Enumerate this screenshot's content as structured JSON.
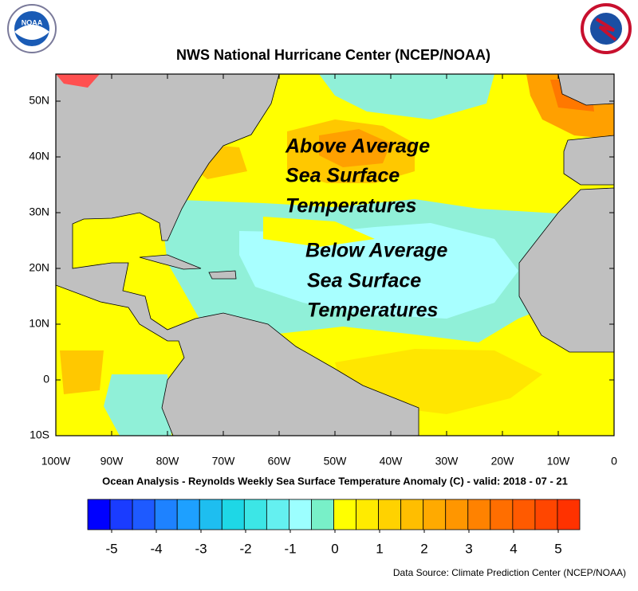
{
  "title": "NWS National Hurricane Center (NCEP/NOAA)",
  "map": {
    "lon_ticks": [
      "100W",
      "90W",
      "80W",
      "70W",
      "60W",
      "50W",
      "40W",
      "30W",
      "20W",
      "10W",
      "0"
    ],
    "lat_ticks": [
      "50N",
      "40N",
      "30N",
      "20N",
      "10N",
      "0",
      "10S"
    ],
    "annotations": {
      "above": [
        "Above Average",
        "Sea Surface",
        "Temperatures"
      ],
      "below": [
        "Below Average",
        "Sea Surface",
        "Temperatures"
      ]
    }
  },
  "caption": "Ocean Analysis - Reynolds Weekly Sea Surface Temperature Anomaly (C) - valid: 2018 - 07 - 21",
  "colorbar": {
    "ticks": [
      -5,
      -4,
      -3,
      -2,
      -1,
      0,
      1,
      2,
      3,
      4,
      5
    ],
    "colors": [
      "#0000ff",
      "#1a3cff",
      "#1e5aff",
      "#1e82ff",
      "#1ea0ff",
      "#1ebef0",
      "#1ed7e6",
      "#3ce6e6",
      "#64f0f0",
      "#9cffff",
      "#78f0c8",
      "#ffff00",
      "#ffeb00",
      "#ffd200",
      "#ffbe00",
      "#ffaa00",
      "#ff9600",
      "#ff8200",
      "#ff6e00",
      "#ff5a00",
      "#ff4600",
      "#ff3200"
    ]
  },
  "source": "Data Source: Climate Prediction Center (NCEP/NOAA)"
}
